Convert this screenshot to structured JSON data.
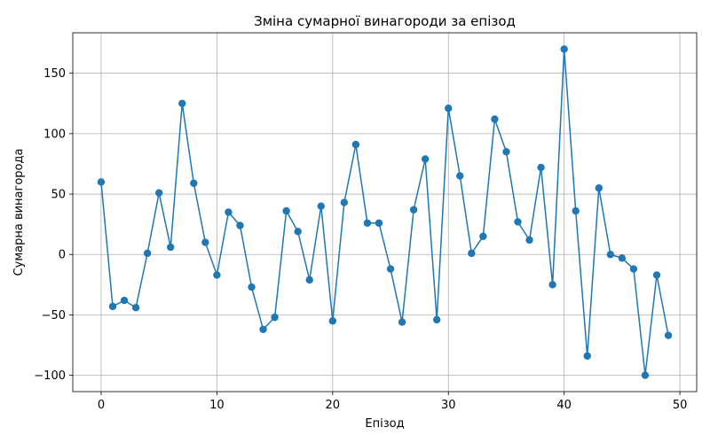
{
  "chart_data": {
    "type": "line",
    "title": "Зміна сумарної винагороди за епізод",
    "xlabel": "Епізод",
    "ylabel": "Сумарна винагорода",
    "xlim": [
      -2.45,
      51.45
    ],
    "ylim": [
      -113.5,
      183.5
    ],
    "xticks": [
      0,
      10,
      20,
      30,
      40,
      50
    ],
    "yticks": [
      -100,
      -50,
      0,
      50,
      100,
      150
    ],
    "xtick_labels": [
      "0",
      "10",
      "20",
      "30",
      "40",
      "50"
    ],
    "ytick_labels": [
      "−100",
      "−50",
      "0",
      "50",
      "100",
      "150"
    ],
    "grid": true,
    "color": "#1f77b4",
    "marker": "circle",
    "series": [
      {
        "x": [
          0,
          1,
          2,
          3,
          4,
          5,
          6,
          7,
          8,
          9,
          10,
          11,
          12,
          13,
          14,
          15,
          16,
          17,
          18,
          19,
          20,
          21,
          22,
          23,
          24,
          25,
          26,
          27,
          28,
          29,
          30,
          31,
          32,
          33,
          34,
          35,
          36,
          37,
          38,
          39,
          40,
          41,
          42,
          43,
          44,
          45,
          46,
          47,
          48,
          49
        ],
        "values": [
          60,
          -43,
          -38,
          -44,
          1,
          51,
          6,
          125,
          59,
          10,
          -17,
          35,
          24,
          -27,
          -62,
          -52,
          36,
          19,
          -21,
          40,
          -55,
          43,
          91,
          26,
          26,
          -12,
          -56,
          37,
          79,
          -54,
          121,
          65,
          1,
          15,
          112,
          85,
          27,
          12,
          72,
          -25,
          170,
          36,
          -84,
          55,
          0,
          -3,
          -12,
          -100,
          -17,
          -67
        ]
      }
    ]
  }
}
